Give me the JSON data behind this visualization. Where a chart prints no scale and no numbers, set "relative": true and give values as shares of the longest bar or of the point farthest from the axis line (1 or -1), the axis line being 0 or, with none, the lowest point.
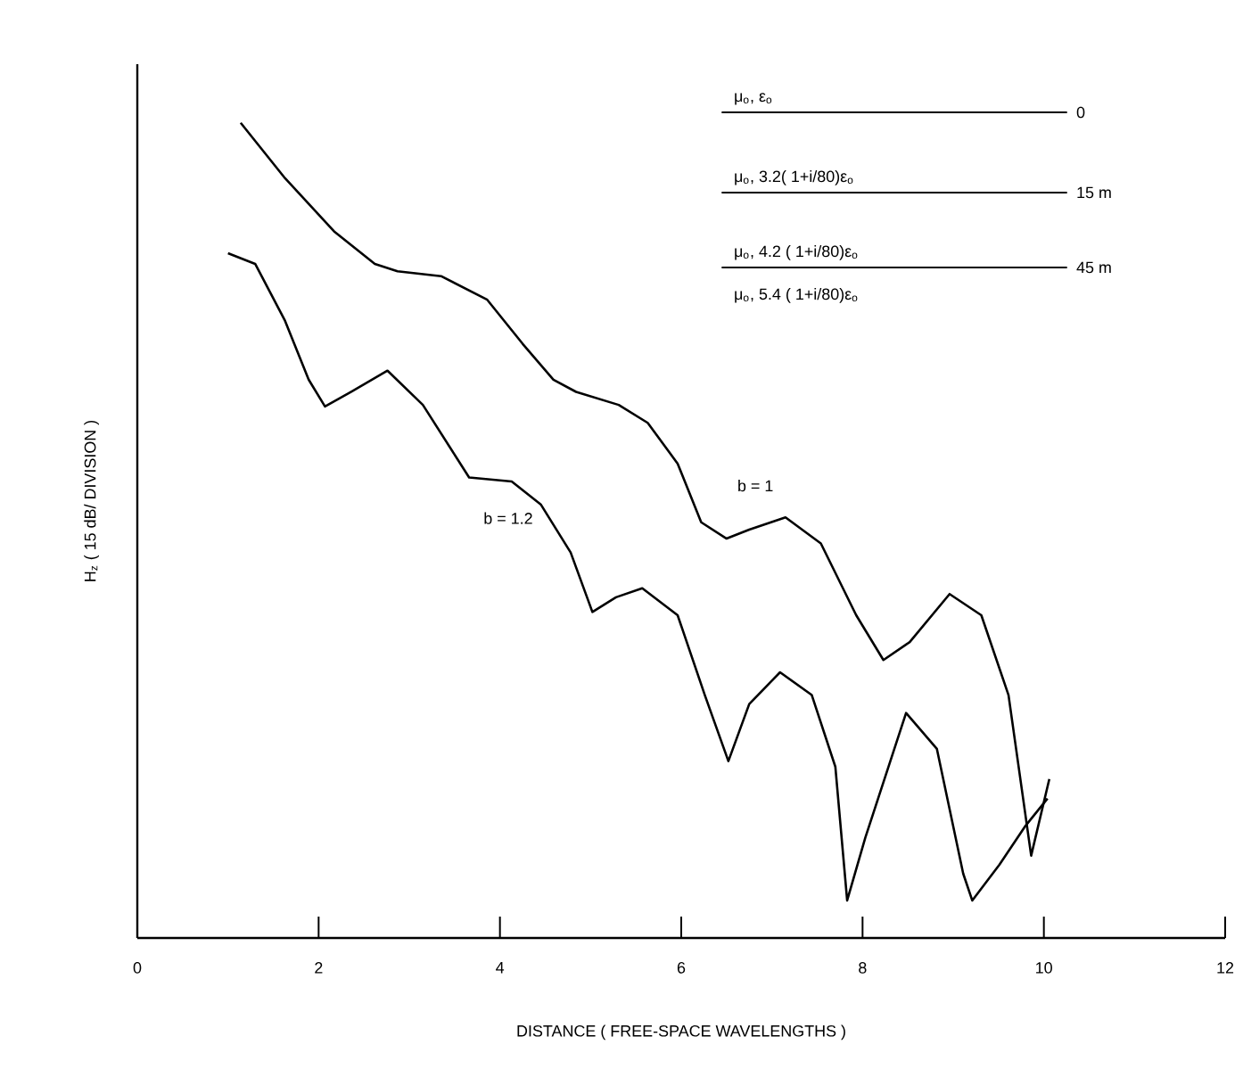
{
  "chart_data": {
    "type": "line",
    "relative": true,
    "xlabel": "DISTANCE   ( FREE-SPACE WAVELENGTHS )",
    "ylabel": "H$_{z}$  ( 15 dB/ DIVISION )",
    "xlim": [
      0,
      12
    ],
    "xticks": [
      0,
      2,
      4,
      6,
      8,
      10,
      12
    ],
    "legend": false,
    "grid": false,
    "marker": "none",
    "line_style": "solid",
    "series": [
      {
        "name": "b = 1",
        "color": "#000000",
        "x": [
          1.14,
          1.63,
          2.17,
          2.62,
          2.87,
          3.35,
          3.86,
          4.25,
          4.59,
          4.84,
          5.31,
          5.63,
          5.96,
          6.22,
          6.5,
          6.75,
          7.15,
          7.54,
          7.93,
          8.23,
          8.52,
          8.96,
          9.31,
          9.61,
          9.86,
          10.06
        ],
        "values": [
          1.0,
          0.932,
          0.867,
          0.827,
          0.818,
          0.812,
          0.783,
          0.729,
          0.685,
          0.67,
          0.654,
          0.632,
          0.582,
          0.51,
          0.49,
          0.501,
          0.516,
          0.484,
          0.396,
          0.341,
          0.363,
          0.422,
          0.396,
          0.298,
          0.101,
          0.195
        ]
      },
      {
        "name": "b = 1.2",
        "color": "#000000",
        "x": [
          1.0,
          1.3,
          1.63,
          1.89,
          2.07,
          2.36,
          2.76,
          3.15,
          3.66,
          4.13,
          4.45,
          4.78,
          5.02,
          5.28,
          5.57,
          5.96,
          6.26,
          6.52,
          6.75,
          7.09,
          7.44,
          7.7,
          7.83,
          8.03,
          8.48,
          8.82,
          9.11,
          9.21,
          9.51,
          9.8,
          10.04
        ],
        "values": [
          0.84,
          0.827,
          0.757,
          0.685,
          0.652,
          0.67,
          0.696,
          0.654,
          0.565,
          0.56,
          0.532,
          0.473,
          0.4,
          0.418,
          0.429,
          0.396,
          0.298,
          0.217,
          0.287,
          0.326,
          0.298,
          0.21,
          0.046,
          0.123,
          0.276,
          0.232,
          0.079,
          0.046,
          0.09,
          0.138,
          0.171
        ]
      }
    ],
    "annotations": [
      "μ$_{o}$, ε$_{o}$",
      "0",
      "μ$_{o}$, 3.2( 1+i/80)ε$_{o}$",
      "15 m",
      "μ$_{o}$, 4.2 ( 1+i/80)ε$_{o}$",
      "45 m",
      "μ$_{o}$, 5.4 ( 1+i/80)ε$_{o}$"
    ]
  }
}
